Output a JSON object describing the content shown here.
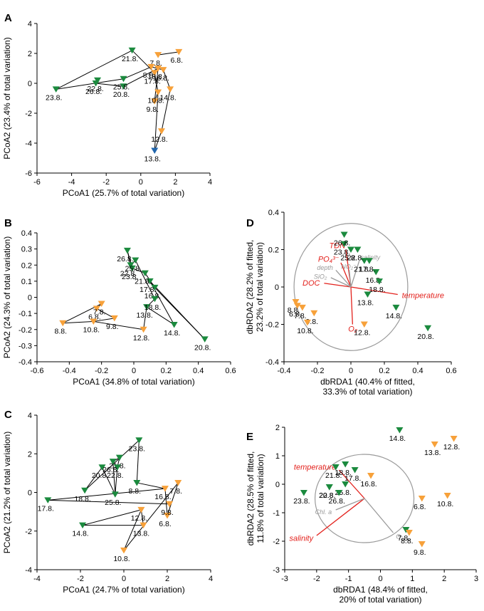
{
  "figure": {
    "colors": {
      "orange": "#F7A13A",
      "green": "#1B8A3E",
      "blue": "#2166AC",
      "red": "#E3211C",
      "gray": "#A6A6A6",
      "axis": "#000000"
    }
  },
  "chart_data": [
    {
      "panel": "A",
      "type": "scatter",
      "xlabel": "PCoA1 (25.7% of total variation)",
      "ylabel": "PCoA2 (23.4% of total variation)",
      "xlim": [
        -6,
        4
      ],
      "ylim": [
        -6,
        4
      ],
      "xticks": [
        -6,
        -4,
        -2,
        0,
        2,
        4
      ],
      "yticks": [
        -6,
        -4,
        -2,
        0,
        2,
        4
      ],
      "points": [
        {
          "label": "6.8.",
          "x": 2.2,
          "y": 2.1,
          "color": "orange"
        },
        {
          "label": "7.8.",
          "x": 1.0,
          "y": 1.9,
          "color": "orange"
        },
        {
          "label": "8.8.",
          "x": 0.6,
          "y": 1.1,
          "color": "orange"
        },
        {
          "label": "9.8.",
          "x": 0.8,
          "y": -1.2,
          "color": "orange"
        },
        {
          "label": "10.8.",
          "x": 1.0,
          "y": -0.6,
          "color": "orange"
        },
        {
          "label": "12.8.",
          "x": 1.2,
          "y": -3.2,
          "color": "orange"
        },
        {
          "label": "13.8.",
          "x": 0.8,
          "y": -4.5,
          "color": "blue"
        },
        {
          "label": "14.8.",
          "x": 1.7,
          "y": -0.4,
          "color": "orange"
        },
        {
          "label": "16.8.",
          "x": 1.3,
          "y": 0.9,
          "color": "orange"
        },
        {
          "label": "17.8.",
          "x": 0.8,
          "y": 0.7,
          "color": "orange"
        },
        {
          "label": "18.8.",
          "x": 1.0,
          "y": 1.0,
          "color": "orange"
        },
        {
          "label": "20.8.",
          "x": -1.0,
          "y": -0.2,
          "color": "green"
        },
        {
          "label": "21.8.",
          "x": -0.5,
          "y": 2.2,
          "color": "green"
        },
        {
          "label": "22.8.",
          "x": -2.5,
          "y": 0.2,
          "color": "green"
        },
        {
          "label": "23.8.",
          "x": -4.9,
          "y": -0.4,
          "color": "green"
        },
        {
          "label": "25.8.",
          "x": -1.0,
          "y": 0.3,
          "color": "green"
        },
        {
          "label": "26.8.",
          "x": -2.6,
          "y": 0.0,
          "color": "green"
        }
      ],
      "connections": [
        [
          "23.8.",
          "21.8."
        ],
        [
          "21.8.",
          "17.8."
        ],
        [
          "23.8.",
          "25.8."
        ],
        [
          "25.8.",
          "8.8."
        ],
        [
          "22.8.",
          "26.8."
        ],
        [
          "26.8.",
          "20.8."
        ],
        [
          "20.8.",
          "18.8."
        ],
        [
          "7.8.",
          "6.8."
        ],
        [
          "8.8.",
          "16.8."
        ],
        [
          "16.8.",
          "14.8."
        ],
        [
          "14.8.",
          "12.8."
        ],
        [
          "12.8.",
          "13.8."
        ],
        [
          "13.8.",
          "10.8."
        ],
        [
          "10.8.",
          "9.8."
        ],
        [
          "9.8.",
          "18.8."
        ],
        [
          "17.8.",
          "10.8."
        ]
      ],
      "biplot": null
    },
    {
      "panel": "B",
      "type": "scatter",
      "xlabel": "PCoA1 (34.8% of total variation)",
      "ylabel": "PCoA2 (24.3% of total variation)",
      "xlim": [
        -0.6,
        0.6
      ],
      "ylim": [
        -0.4,
        0.4
      ],
      "xticks": [
        -0.6,
        -0.4,
        -0.2,
        0,
        0.2,
        0.4,
        0.6
      ],
      "yticks": [
        -0.4,
        -0.3,
        -0.2,
        -0.1,
        0,
        0.1,
        0.2,
        0.3,
        0.4
      ],
      "points": [
        {
          "label": "6.8.",
          "x": -0.23,
          "y": -0.07,
          "color": "orange"
        },
        {
          "label": "7.8.",
          "x": -0.2,
          "y": -0.04,
          "color": "orange"
        },
        {
          "label": "8.8.",
          "x": -0.44,
          "y": -0.16,
          "color": "orange"
        },
        {
          "label": "9.8.",
          "x": -0.12,
          "y": -0.13,
          "color": "orange"
        },
        {
          "label": "10.8.",
          "x": -0.25,
          "y": -0.15,
          "color": "orange"
        },
        {
          "label": "12.8.",
          "x": 0.06,
          "y": -0.2,
          "color": "orange"
        },
        {
          "label": "13.8.",
          "x": 0.08,
          "y": -0.06,
          "color": "green"
        },
        {
          "label": "14.8.",
          "x": 0.25,
          "y": -0.17,
          "color": "green"
        },
        {
          "label": "16.8.",
          "x": 0.13,
          "y": 0.06,
          "color": "green"
        },
        {
          "label": "17.8.",
          "x": 0.1,
          "y": 0.1,
          "color": "green"
        },
        {
          "label": "18.8.",
          "x": 0.13,
          "y": -0.01,
          "color": "green"
        },
        {
          "label": "20.8.",
          "x": 0.44,
          "y": -0.26,
          "color": "green"
        },
        {
          "label": "21.8.",
          "x": 0.07,
          "y": 0.15,
          "color": "green"
        },
        {
          "label": "22.8.",
          "x": -0.02,
          "y": 0.2,
          "color": "green"
        },
        {
          "label": "23.8.",
          "x": -0.01,
          "y": 0.18,
          "color": "green"
        },
        {
          "label": "25.8.",
          "x": 0.01,
          "y": 0.23,
          "color": "green"
        },
        {
          "label": "26.8.",
          "x": -0.04,
          "y": 0.29,
          "color": "green"
        }
      ],
      "connections": [
        [
          "8.8.",
          "7.8."
        ],
        [
          "8.8.",
          "10.8."
        ],
        [
          "7.8.",
          "6.8."
        ],
        [
          "6.8.",
          "9.8."
        ],
        [
          "10.8.",
          "9.8."
        ],
        [
          "10.8.",
          "12.8."
        ],
        [
          "12.8.",
          "13.8."
        ],
        [
          "13.8.",
          "14.8."
        ],
        [
          "14.8.",
          "17.8."
        ],
        [
          "17.8.",
          "20.8."
        ],
        [
          "20.8.",
          "16.8."
        ],
        [
          "16.8.",
          "21.8."
        ],
        [
          "21.8.",
          "23.8."
        ],
        [
          "23.8.",
          "26.8."
        ],
        [
          "26.8.",
          "22.8."
        ],
        [
          "22.8.",
          "25.8."
        ],
        [
          "25.8.",
          "18.8."
        ],
        [
          "18.8.",
          "13.8."
        ]
      ],
      "biplot": null
    },
    {
      "panel": "C",
      "type": "scatter",
      "xlabel": "PCoA1 (24.7% of total variation)",
      "ylabel": "PCoA2 (21.2% of total variation)",
      "xlim": [
        -4,
        4
      ],
      "ylim": [
        -4,
        4
      ],
      "xticks": [
        -4,
        -2,
        0,
        2,
        4
      ],
      "yticks": [
        -4,
        -2,
        0,
        2,
        4
      ],
      "points": [
        {
          "label": "6.8.",
          "x": 2.0,
          "y": -1.2,
          "color": "orange"
        },
        {
          "label": "7.8.",
          "x": 2.5,
          "y": 0.5,
          "color": "orange"
        },
        {
          "label": "8.8.",
          "x": 0.6,
          "y": 0.5,
          "color": "green"
        },
        {
          "label": "9.8.",
          "x": 2.1,
          "y": -0.6,
          "color": "orange"
        },
        {
          "label": "10.8.",
          "x": 0.0,
          "y": -3.0,
          "color": "orange"
        },
        {
          "label": "12.8.",
          "x": 0.8,
          "y": -0.9,
          "color": "orange"
        },
        {
          "label": "13.8.",
          "x": 0.9,
          "y": -1.7,
          "color": "orange"
        },
        {
          "label": "14.8.",
          "x": -1.9,
          "y": -1.7,
          "color": "green"
        },
        {
          "label": "16.8.",
          "x": 1.9,
          "y": 0.2,
          "color": "orange"
        },
        {
          "label": "17.8.",
          "x": -3.5,
          "y": -0.4,
          "color": "green"
        },
        {
          "label": "18.8.",
          "x": -1.8,
          "y": 0.1,
          "color": "green"
        },
        {
          "label": "20.8.",
          "x": -1.0,
          "y": 1.3,
          "color": "green"
        },
        {
          "label": "21.8.",
          "x": -0.2,
          "y": 1.8,
          "color": "green"
        },
        {
          "label": "22.8.",
          "x": -0.3,
          "y": 1.3,
          "color": "green"
        },
        {
          "label": "23.8.",
          "x": 0.7,
          "y": 2.7,
          "color": "green"
        },
        {
          "label": "25.8.",
          "x": -0.4,
          "y": -0.1,
          "color": "green"
        },
        {
          "label": "26.8.",
          "x": -0.5,
          "y": 1.6,
          "color": "green"
        }
      ],
      "connections": [
        [
          "17.8.",
          "16.8."
        ],
        [
          "17.8.",
          "9.8."
        ],
        [
          "14.8.",
          "13.8."
        ],
        [
          "14.8.",
          "12.8."
        ],
        [
          "13.8.",
          "12.8."
        ],
        [
          "12.8.",
          "10.8."
        ],
        [
          "10.8.",
          "7.8."
        ],
        [
          "7.8.",
          "6.8."
        ],
        [
          "6.8.",
          "16.8."
        ],
        [
          "16.8.",
          "8.8."
        ],
        [
          "8.8.",
          "23.8."
        ],
        [
          "23.8.",
          "18.8."
        ],
        [
          "18.8.",
          "20.8."
        ],
        [
          "20.8.",
          "25.8."
        ],
        [
          "25.8.",
          "22.8."
        ],
        [
          "22.8.",
          "21.8."
        ],
        [
          "21.8.",
          "26.8."
        ],
        [
          "26.8.",
          "25.8."
        ]
      ],
      "biplot": null
    },
    {
      "panel": "D",
      "type": "scatter",
      "xlabel": "dbRDA1 (40.4% of fitted, 33.3% of total variation)",
      "xlabel_lines": [
        "dbRDA1 (40.4% of fitted,",
        "33.3% of total variation)"
      ],
      "ylabel": "dbRDA2 (28.2% of fitted, 23.2% of total variation)",
      "ylabel_lines": [
        "dbRDA2 (28.2% of fitted,",
        "23.2% of total variation)"
      ],
      "xlim": [
        -0.4,
        0.6
      ],
      "ylim": [
        -0.4,
        0.4
      ],
      "xticks": [
        -0.4,
        -0.2,
        0,
        0.2,
        0.4,
        0.6
      ],
      "yticks": [
        -0.4,
        -0.2,
        0,
        0.2,
        0.4
      ],
      "points": [
        {
          "label": "6.8.",
          "x": -0.32,
          "y": -0.1,
          "color": "orange"
        },
        {
          "label": "7.8.",
          "x": -0.29,
          "y": -0.11,
          "color": "orange"
        },
        {
          "label": "8.8.",
          "x": -0.33,
          "y": -0.08,
          "color": "orange"
        },
        {
          "label": "9.8.",
          "x": -0.22,
          "y": -0.14,
          "color": "orange"
        },
        {
          "label": "10.8.",
          "x": -0.26,
          "y": -0.19,
          "color": "orange"
        },
        {
          "label": "12.8.",
          "x": 0.08,
          "y": -0.2,
          "color": "orange"
        },
        {
          "label": "13.8.",
          "x": 0.1,
          "y": -0.04,
          "color": "green"
        },
        {
          "label": "14.8.",
          "x": 0.27,
          "y": -0.11,
          "color": "green"
        },
        {
          "label": "16.8.",
          "x": 0.15,
          "y": 0.08,
          "color": "green"
        },
        {
          "label": "17.8.",
          "x": 0.11,
          "y": 0.14,
          "color": "green"
        },
        {
          "label": "18.8.",
          "x": 0.17,
          "y": 0.03,
          "color": "green"
        },
        {
          "label": "20.8.",
          "x": 0.46,
          "y": -0.22,
          "color": "green"
        },
        {
          "label": "21.8.",
          "x": 0.08,
          "y": 0.14,
          "color": "green"
        },
        {
          "label": "22.8.",
          "x": 0.04,
          "y": 0.2,
          "color": "green"
        },
        {
          "label": "23.8.",
          "x": -0.04,
          "y": 0.23,
          "color": "green"
        },
        {
          "label": "25.8.",
          "x": 0.0,
          "y": 0.2,
          "color": "green"
        },
        {
          "label": "26.8.",
          "x": -0.04,
          "y": 0.28,
          "color": "green"
        }
      ],
      "connections": [],
      "biplot": {
        "circle": {
          "cx": 0,
          "cy": 0,
          "r": 0.34
        },
        "vectors": [
          {
            "label": "temperature",
            "x": 0.28,
            "y": -0.04,
            "color": "red",
            "italic": true
          },
          {
            "label": "DOC",
            "x": -0.16,
            "y": 0.02,
            "color": "red",
            "italic": true
          },
          {
            "label": "O₂",
            "x": 0.01,
            "y": -0.2,
            "color": "red",
            "italic": true
          },
          {
            "label": "TDN",
            "x": -0.03,
            "y": 0.2,
            "color": "red",
            "italic": true
          },
          {
            "label": "PO₄³⁻",
            "x": -0.06,
            "y": 0.13,
            "color": "red",
            "italic": true
          },
          {
            "label": "depth",
            "x": -0.09,
            "y": 0.09,
            "color": "gray",
            "italic": true
          },
          {
            "label": "SiO₂",
            "x": -0.12,
            "y": 0.05,
            "color": "gray",
            "italic": true
          },
          {
            "label": "NO₂⁻",
            "x": -0.01,
            "y": 0.09,
            "color": "gray",
            "italic": true
          },
          {
            "label": "salinity",
            "x": 0.05,
            "y": 0.14,
            "color": "gray",
            "italic": true
          }
        ]
      }
    },
    {
      "panel": "E",
      "type": "scatter",
      "xlabel": "dbRDA1 (48.4% of fitted, 20% of total variation)",
      "xlabel_lines": [
        "dbRDA1 (48.4% of fitted,",
        "20% of total variation)"
      ],
      "ylabel": "dbRDA2 (28.5% of fitted, 11.8% of total variation)",
      "ylabel_lines": [
        "dbRDA2 (28.5% of fitted,",
        "11.8% of total variation)"
      ],
      "xlim": [
        -3,
        3
      ],
      "ylim": [
        -3,
        2
      ],
      "xticks": [
        -3,
        -2,
        -1,
        0,
        1,
        2,
        3
      ],
      "yticks": [
        -3,
        -2,
        -1,
        0,
        1,
        2
      ],
      "points": [
        {
          "label": "6.8.",
          "x": 1.3,
          "y": -0.5,
          "color": "orange"
        },
        {
          "label": "7.8.",
          "x": 0.8,
          "y": -1.6,
          "color": "green"
        },
        {
          "label": "8.8.",
          "x": 0.9,
          "y": -1.7,
          "color": "orange"
        },
        {
          "label": "9.8.",
          "x": 1.3,
          "y": -2.1,
          "color": "orange"
        },
        {
          "label": "10.8.",
          "x": 2.1,
          "y": -0.4,
          "color": "orange"
        },
        {
          "label": "12.8.",
          "x": 2.3,
          "y": 1.6,
          "color": "orange"
        },
        {
          "label": "13.8.",
          "x": 1.7,
          "y": 1.4,
          "color": "orange"
        },
        {
          "label": "14.8.",
          "x": 0.6,
          "y": 1.9,
          "color": "green"
        },
        {
          "label": "16.8.",
          "x": -0.3,
          "y": 0.3,
          "color": "orange"
        },
        {
          "label": "17.8.",
          "x": -0.8,
          "y": 0.5,
          "color": "green"
        },
        {
          "label": "18.8.",
          "x": -1.1,
          "y": 0.7,
          "color": "green"
        },
        {
          "label": "20.8.",
          "x": -1.6,
          "y": -0.1,
          "color": "green"
        },
        {
          "label": "21.8.",
          "x": -1.4,
          "y": 0.6,
          "color": "green"
        },
        {
          "label": "22.8.",
          "x": -1.6,
          "y": -0.1,
          "color": "green"
        },
        {
          "label": "23.8.",
          "x": -2.4,
          "y": -0.3,
          "color": "green"
        },
        {
          "label": "25.8.",
          "x": -1.1,
          "y": 0.0,
          "color": "green"
        },
        {
          "label": "26.8.",
          "x": -1.3,
          "y": -0.3,
          "color": "green"
        }
      ],
      "connections": [],
      "biplot": {
        "circle": {
          "cx": -0.5,
          "cy": -0.5,
          "r": 1.55
        },
        "vectors": [
          {
            "label": "temperature",
            "x": -1.3,
            "y": 0.5,
            "color": "red",
            "italic": true
          },
          {
            "label": "salinity",
            "x": -2.0,
            "y": -1.8,
            "color": "red",
            "italic": true
          },
          {
            "label": "Chl. a",
            "x": -1.4,
            "y": -0.9,
            "color": "gray",
            "italic": true
          },
          {
            "label": "O₂",
            "x": 0.4,
            "y": -1.7,
            "color": "gray",
            "italic": true
          }
        ]
      }
    }
  ]
}
